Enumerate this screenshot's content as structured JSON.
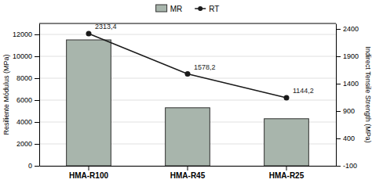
{
  "chart_data": {
    "type": "bar",
    "categories": [
      "HMA-R100",
      "HMA-R45",
      "HMA-R25"
    ],
    "series": [
      {
        "name": "MR",
        "type": "bar",
        "color": "#a8b5ac",
        "values": [
          11500,
          5300,
          4300
        ]
      },
      {
        "name": "RT",
        "type": "line",
        "axis": "y2",
        "color": "#1a1a1a",
        "marker": "circle",
        "values": [
          2313.4,
          1578.2,
          1144.2
        ],
        "value_labels": [
          "2313,4",
          "1578,2",
          "1144,2"
        ],
        "data_labels": true
      }
    ],
    "ylabel": "Resiliente Módulus (MPa)",
    "y2label": "Indirect Tensile Strength (MPa)",
    "ylim": [
      0,
      13000
    ],
    "yticks": [
      0,
      2000,
      4000,
      6000,
      8000,
      10000,
      12000
    ],
    "y2lim": [
      -100,
      2500
    ],
    "y2ticks": [
      -100,
      400,
      900,
      1400,
      1900,
      2400
    ],
    "grid": true,
    "legend": "top"
  }
}
